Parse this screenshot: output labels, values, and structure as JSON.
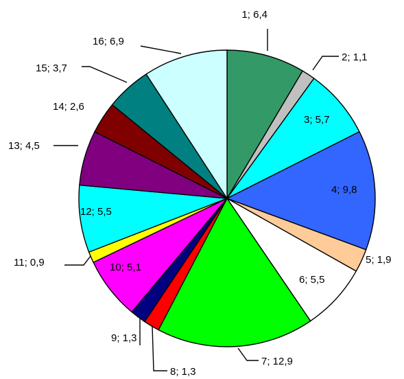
{
  "chart_data": {
    "type": "pie",
    "title": "",
    "start": "12 o'clock, clockwise",
    "slices": [
      {
        "label": "1; 6,4",
        "category": "1",
        "value": 6.4,
        "color": "#339966"
      },
      {
        "label": "2; 1,1",
        "category": "2",
        "value": 1.1,
        "color": "#c0c0c0"
      },
      {
        "label": "3; 5,7",
        "category": "3",
        "value": 5.7,
        "color": "#00ffff"
      },
      {
        "label": "4; 9,8",
        "category": "4",
        "value": 9.8,
        "color": "#3366ff"
      },
      {
        "label": "5; 1,9",
        "category": "5",
        "value": 1.9,
        "color": "#ffcc99"
      },
      {
        "label": "6; 5,5",
        "category": "6",
        "value": 5.5,
        "color": "#ffffff"
      },
      {
        "label": "7; 12,9",
        "category": "7",
        "value": 12.9,
        "color": "#00ff00"
      },
      {
        "label": "8; 1,3",
        "category": "8",
        "value": 1.3,
        "color": "#ff0000"
      },
      {
        "label": "9; 1,3",
        "category": "9",
        "value": 1.3,
        "color": "#000080"
      },
      {
        "label": "10; 5,1",
        "category": "10",
        "value": 5.1,
        "color": "#ff00ff"
      },
      {
        "label": "11; 0,9",
        "category": "11",
        "value": 0.9,
        "color": "#ffff00"
      },
      {
        "label": "12; 5,5",
        "category": "12",
        "value": 5.5,
        "color": "#00ffff"
      },
      {
        "label": "13; 4,5",
        "category": "13",
        "value": 4.5,
        "color": "#800080"
      },
      {
        "label": "14; 2,6",
        "category": "14",
        "value": 2.6,
        "color": "#800000"
      },
      {
        "label": "15; 3,7",
        "category": "15",
        "value": 3.7,
        "color": "#008080"
      },
      {
        "label": "16; 6,9",
        "category": "16",
        "value": 6.9,
        "color": "#ccffff"
      }
    ]
  }
}
